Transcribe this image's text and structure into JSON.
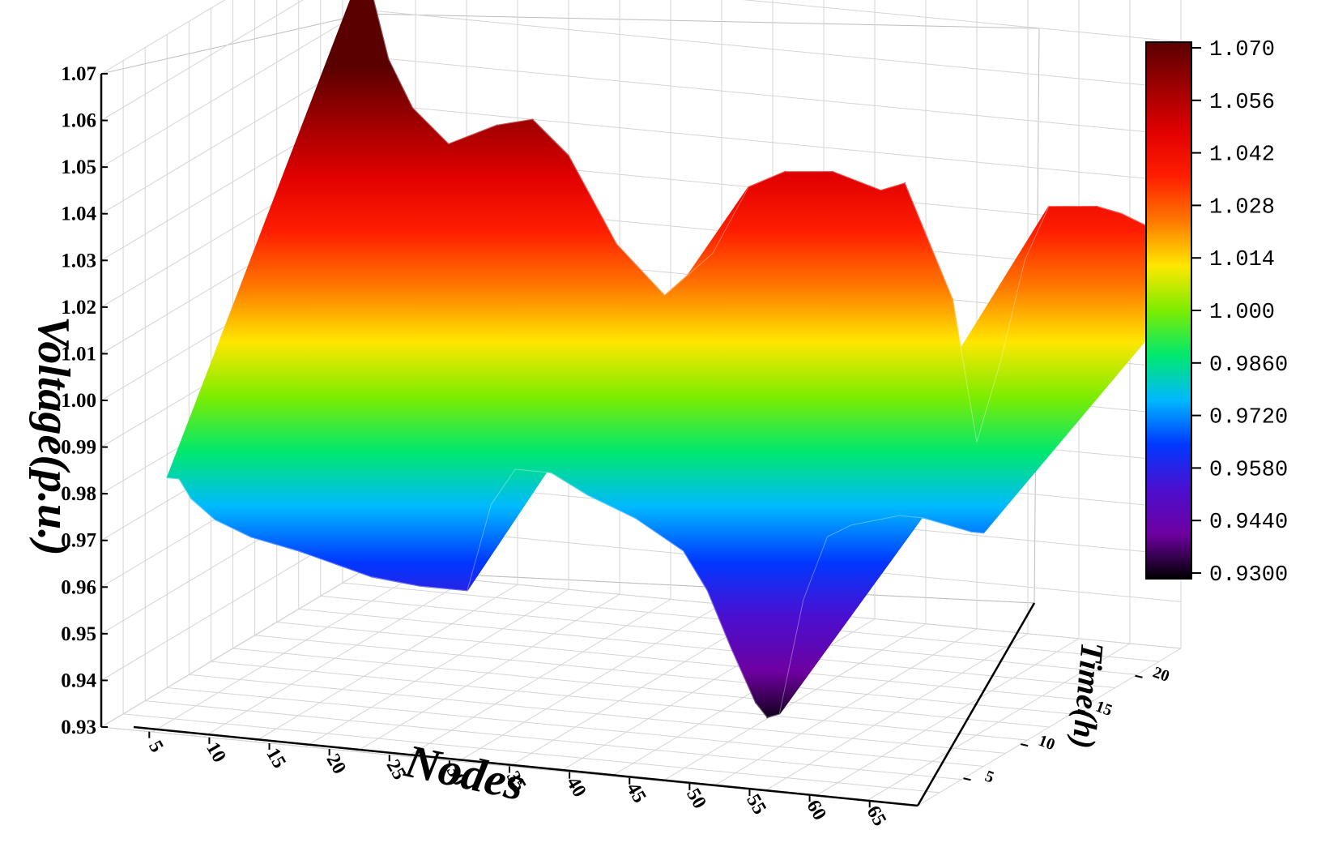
{
  "chart_data": {
    "type": "surface3d",
    "zlabel": "Voltage(p.u.)",
    "xlabel": "Nodes",
    "ylabel": "Time(h)",
    "z_ticks": [
      "0.93",
      "0.94",
      "0.95",
      "0.96",
      "0.97",
      "0.98",
      "0.99",
      "1.00",
      "1.01",
      "1.02",
      "1.03",
      "1.04",
      "1.05",
      "1.06",
      "1.07"
    ],
    "x_ticks": [
      "5",
      "10",
      "15",
      "20",
      "25",
      "30",
      "35",
      "40",
      "45",
      "50",
      "55",
      "60",
      "65"
    ],
    "y_ticks": [
      "5",
      "10",
      "15",
      "20"
    ],
    "xlim": [
      1,
      69
    ],
    "ylim": [
      1,
      24
    ],
    "zlim": [
      0.93,
      1.07
    ],
    "colorbar": {
      "ticks": [
        "1.070",
        "1.056",
        "1.042",
        "1.028",
        "1.014",
        "1.000",
        "0.9860",
        "0.9720",
        "0.9580",
        "0.9440",
        "0.9300"
      ],
      "colors": [
        "#5a0000",
        "#9e0000",
        "#e10000",
        "#ff1e00",
        "#ff7800",
        "#ffe600",
        "#7ded00",
        "#00e86e",
        "#00b9ff",
        "#0038ff",
        "#4b0fd0",
        "#6e00a0",
        "#000000"
      ]
    },
    "voltage_profile": {
      "nodes": [
        1,
        2,
        3,
        5,
        8,
        12,
        15,
        18,
        22,
        26,
        28,
        30,
        33,
        36,
        40,
        44,
        46,
        48,
        50,
        51,
        52,
        54,
        56,
        58,
        62,
        64,
        66,
        68,
        69
      ],
      "min_voltage": [
        0.975,
        0.975,
        0.971,
        0.967,
        0.964,
        0.962,
        0.96,
        0.958,
        0.957,
        0.957,
        0.976,
        0.984,
        0.984,
        0.98,
        0.976,
        0.97,
        0.962,
        0.95,
        0.939,
        0.936,
        0.937,
        0.962,
        0.976,
        0.979,
        0.982,
        0.982,
        0.981,
        0.98,
        0.98
      ],
      "max_voltage": [
        1.06,
        1.05,
        1.04,
        1.03,
        1.023,
        1.028,
        1.03,
        1.023,
        1.005,
        0.995,
        1.0,
        1.005,
        1.02,
        1.024,
        1.025,
        1.022,
        1.024,
        1.012,
        1.0,
        0.985,
        0.97,
        0.988,
        1.01,
        1.022,
        1.023,
        1.022,
        1.02,
        1.01,
        1.005
      ]
    }
  }
}
